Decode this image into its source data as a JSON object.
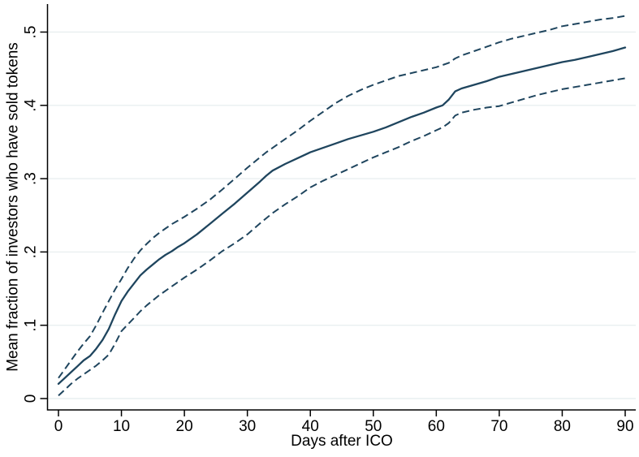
{
  "chart_data": {
    "type": "line",
    "title": "",
    "xlabel": "Days after ICO",
    "ylabel": "Mean fraction of investors who have sold tokens",
    "xlim": [
      0,
      90
    ],
    "ylim": [
      0,
      0.52
    ],
    "xticks": [
      0,
      10,
      20,
      30,
      40,
      50,
      60,
      70,
      80,
      90
    ],
    "xtick_labels": [
      "0",
      "10",
      "20",
      "30",
      "40",
      "50",
      "60",
      "70",
      "80",
      "90"
    ],
    "yticks": [
      0,
      0.1,
      0.2,
      0.3,
      0.4,
      0.5
    ],
    "ytick_labels": [
      "0",
      ".1",
      ".2",
      ".3",
      ".4",
      ".5"
    ],
    "grid": "horizontal",
    "legend_position": "none",
    "colors": {
      "line": "#1f455e",
      "grid": "#e9eff0",
      "axis": "#000000",
      "text": "#000000",
      "background": "#ffffff"
    },
    "x_shared": [
      0,
      1,
      2,
      3,
      4,
      5,
      6,
      7,
      8,
      9,
      10,
      11,
      12,
      13,
      14,
      15,
      16,
      17,
      18,
      19,
      20,
      22,
      24,
      26,
      28,
      30,
      32,
      33,
      34,
      36,
      38,
      40,
      42,
      44,
      46,
      48,
      50,
      52,
      54,
      56,
      58,
      60,
      61,
      62,
      63,
      64,
      66,
      68,
      70,
      72,
      74,
      76,
      78,
      80,
      82,
      84,
      86,
      88,
      90
    ],
    "series": [
      {
        "name": "mean",
        "label": "Mean fraction sold",
        "style": "solid",
        "values": [
          0.02,
          0.028,
          0.036,
          0.044,
          0.052,
          0.058,
          0.068,
          0.08,
          0.095,
          0.115,
          0.133,
          0.146,
          0.157,
          0.168,
          0.176,
          0.183,
          0.19,
          0.196,
          0.201,
          0.207,
          0.212,
          0.224,
          0.238,
          0.252,
          0.266,
          0.281,
          0.296,
          0.304,
          0.311,
          0.32,
          0.328,
          0.336,
          0.342,
          0.348,
          0.354,
          0.359,
          0.364,
          0.37,
          0.377,
          0.384,
          0.39,
          0.397,
          0.4,
          0.408,
          0.419,
          0.423,
          0.428,
          0.433,
          0.439,
          0.443,
          0.447,
          0.451,
          0.455,
          0.459,
          0.462,
          0.466,
          0.47,
          0.474,
          0.479
        ]
      },
      {
        "name": "upper_ci",
        "label": "Upper confidence band",
        "style": "dashed",
        "values": [
          0.028,
          0.04,
          0.052,
          0.064,
          0.075,
          0.085,
          0.1,
          0.117,
          0.133,
          0.149,
          0.163,
          0.178,
          0.191,
          0.202,
          0.211,
          0.219,
          0.226,
          0.232,
          0.238,
          0.243,
          0.248,
          0.259,
          0.271,
          0.285,
          0.3,
          0.315,
          0.329,
          0.336,
          0.342,
          0.354,
          0.366,
          0.379,
          0.391,
          0.403,
          0.413,
          0.421,
          0.428,
          0.434,
          0.44,
          0.444,
          0.448,
          0.452,
          0.455,
          0.458,
          0.464,
          0.468,
          0.474,
          0.48,
          0.486,
          0.491,
          0.495,
          0.499,
          0.503,
          0.508,
          0.511,
          0.514,
          0.517,
          0.519,
          0.522
        ]
      },
      {
        "name": "lower_ci",
        "label": "Lower confidence band",
        "style": "dashed",
        "values": [
          0.004,
          0.012,
          0.02,
          0.027,
          0.033,
          0.039,
          0.045,
          0.052,
          0.06,
          0.075,
          0.092,
          0.101,
          0.11,
          0.119,
          0.127,
          0.134,
          0.141,
          0.147,
          0.153,
          0.159,
          0.165,
          0.176,
          0.188,
          0.201,
          0.212,
          0.224,
          0.239,
          0.246,
          0.253,
          0.265,
          0.276,
          0.288,
          0.297,
          0.305,
          0.313,
          0.321,
          0.329,
          0.336,
          0.343,
          0.351,
          0.358,
          0.366,
          0.37,
          0.376,
          0.386,
          0.39,
          0.394,
          0.397,
          0.399,
          0.404,
          0.409,
          0.414,
          0.418,
          0.422,
          0.425,
          0.428,
          0.431,
          0.434,
          0.437
        ]
      }
    ]
  }
}
